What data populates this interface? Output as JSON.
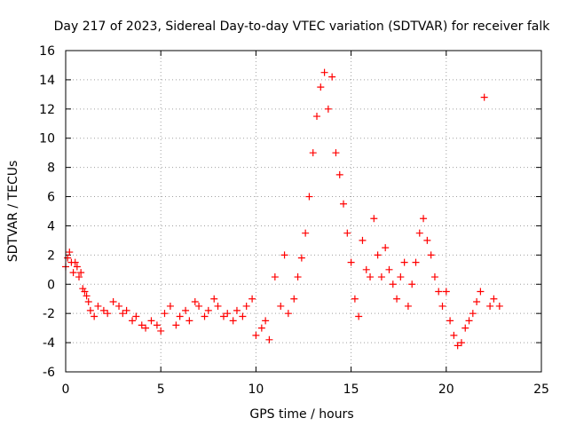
{
  "chart_data": {
    "type": "scatter",
    "title": "Day 217 of 2023, Sidereal Day-to-day VTEC variation (SDTVAR) for receiver falk",
    "xlabel": "GPS time / hours",
    "ylabel": "SDTVAR / TECUs",
    "xlim": [
      0,
      25
    ],
    "ylim": [
      -6,
      16
    ],
    "xticks": [
      "0",
      "5",
      "10",
      "15",
      "20",
      "25"
    ],
    "yticks": [
      "-6",
      "-4",
      "-2",
      "0",
      "2",
      "4",
      "6",
      "8",
      "10",
      "12",
      "14",
      "16"
    ],
    "grid": true,
    "marker": "plus",
    "series": [
      {
        "name": "SDTVAR",
        "color": "#ff0000",
        "x": [
          0.0,
          0.1,
          0.2,
          0.3,
          0.4,
          0.5,
          0.6,
          0.7,
          0.8,
          0.9,
          1.0,
          1.1,
          1.2,
          1.3,
          1.5,
          1.7,
          2.0,
          2.2,
          2.5,
          2.8,
          3.0,
          3.2,
          3.5,
          3.7,
          4.0,
          4.2,
          4.5,
          4.8,
          5.0,
          5.2,
          5.5,
          5.8,
          6.0,
          6.3,
          6.5,
          6.8,
          7.0,
          7.3,
          7.5,
          7.8,
          8.0,
          8.3,
          8.5,
          8.8,
          9.0,
          9.3,
          9.5,
          9.8,
          10.0,
          10.3,
          10.5,
          10.7,
          11.0,
          11.3,
          11.5,
          11.7,
          12.0,
          12.2,
          12.4,
          12.6,
          12.8,
          13.0,
          13.2,
          13.4,
          13.6,
          13.8,
          14.0,
          14.2,
          14.4,
          14.6,
          14.8,
          15.0,
          15.2,
          15.4,
          15.6,
          15.8,
          16.0,
          16.2,
          16.4,
          16.6,
          16.8,
          17.0,
          17.2,
          17.4,
          17.6,
          17.8,
          18.0,
          18.2,
          18.4,
          18.6,
          18.8,
          19.0,
          19.2,
          19.4,
          19.6,
          19.8,
          20.0,
          20.2,
          20.4,
          20.6,
          20.8,
          21.0,
          21.2,
          21.4,
          21.6,
          21.8,
          22.0,
          22.3,
          22.5,
          22.8
        ],
        "y": [
          1.2,
          1.8,
          2.2,
          1.5,
          0.8,
          1.5,
          1.2,
          0.5,
          0.8,
          -0.3,
          -0.5,
          -0.8,
          -1.2,
          -1.8,
          -2.2,
          -1.5,
          -1.8,
          -2.0,
          -1.2,
          -1.5,
          -2.0,
          -1.8,
          -2.5,
          -2.2,
          -2.8,
          -3.0,
          -2.5,
          -2.8,
          -3.2,
          -2.0,
          -1.5,
          -2.8,
          -2.2,
          -1.8,
          -2.5,
          -1.2,
          -1.5,
          -2.2,
          -1.8,
          -1.0,
          -1.5,
          -2.2,
          -2.0,
          -2.5,
          -1.8,
          -2.2,
          -1.5,
          -1.0,
          -3.5,
          -3.0,
          -2.5,
          -3.8,
          0.5,
          -1.5,
          2.0,
          -2.0,
          -1.0,
          0.5,
          1.8,
          3.5,
          6.0,
          9.0,
          11.5,
          13.5,
          14.5,
          12.0,
          14.2,
          9.0,
          7.5,
          5.5,
          3.5,
          1.5,
          -1.0,
          -2.2,
          3.0,
          1.0,
          0.5,
          4.5,
          2.0,
          0.5,
          2.5,
          1.0,
          0.0,
          -1.0,
          0.5,
          1.5,
          -1.5,
          0.0,
          1.5,
          3.5,
          4.5,
          3.0,
          2.0,
          0.5,
          -0.5,
          -1.5,
          -0.5,
          -2.5,
          -3.5,
          -4.2,
          -4.0,
          -3.0,
          -2.5,
          -2.0,
          -1.2,
          -0.5,
          12.8,
          -1.5,
          -1.0,
          -1.5
        ]
      }
    ]
  }
}
